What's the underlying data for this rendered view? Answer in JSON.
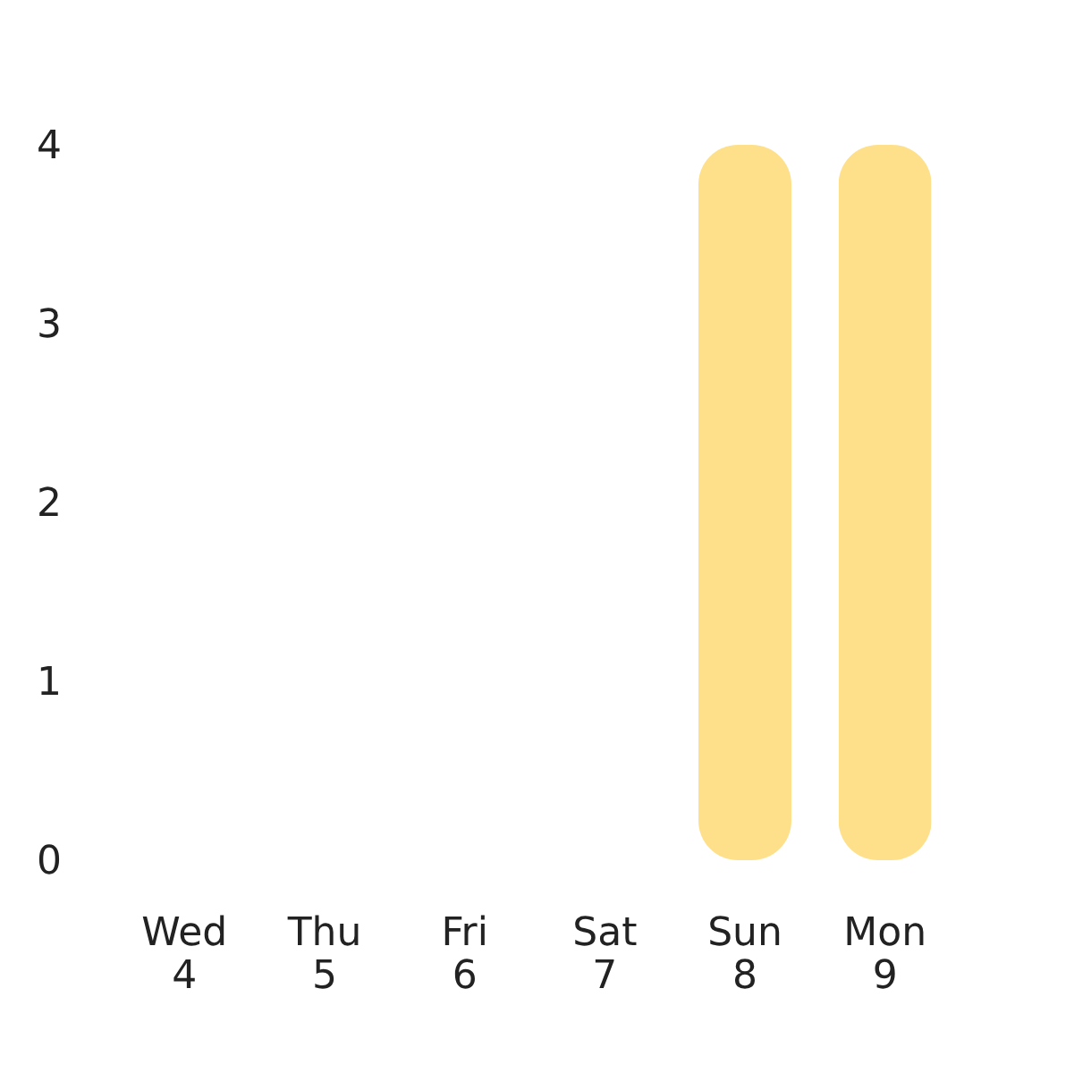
{
  "chart_data": {
    "type": "bar",
    "categories": [
      "Wed\n4",
      "Thu\n5",
      "Fri\n6",
      "Sat\n7",
      "Sun\n8",
      "Mon\n9"
    ],
    "values": [
      0,
      0,
      0,
      0,
      4,
      4
    ],
    "color": "#ffe08a",
    "ylim": [
      0,
      4
    ],
    "yticks": [
      0,
      1,
      2,
      3,
      4
    ],
    "grid": false
  }
}
